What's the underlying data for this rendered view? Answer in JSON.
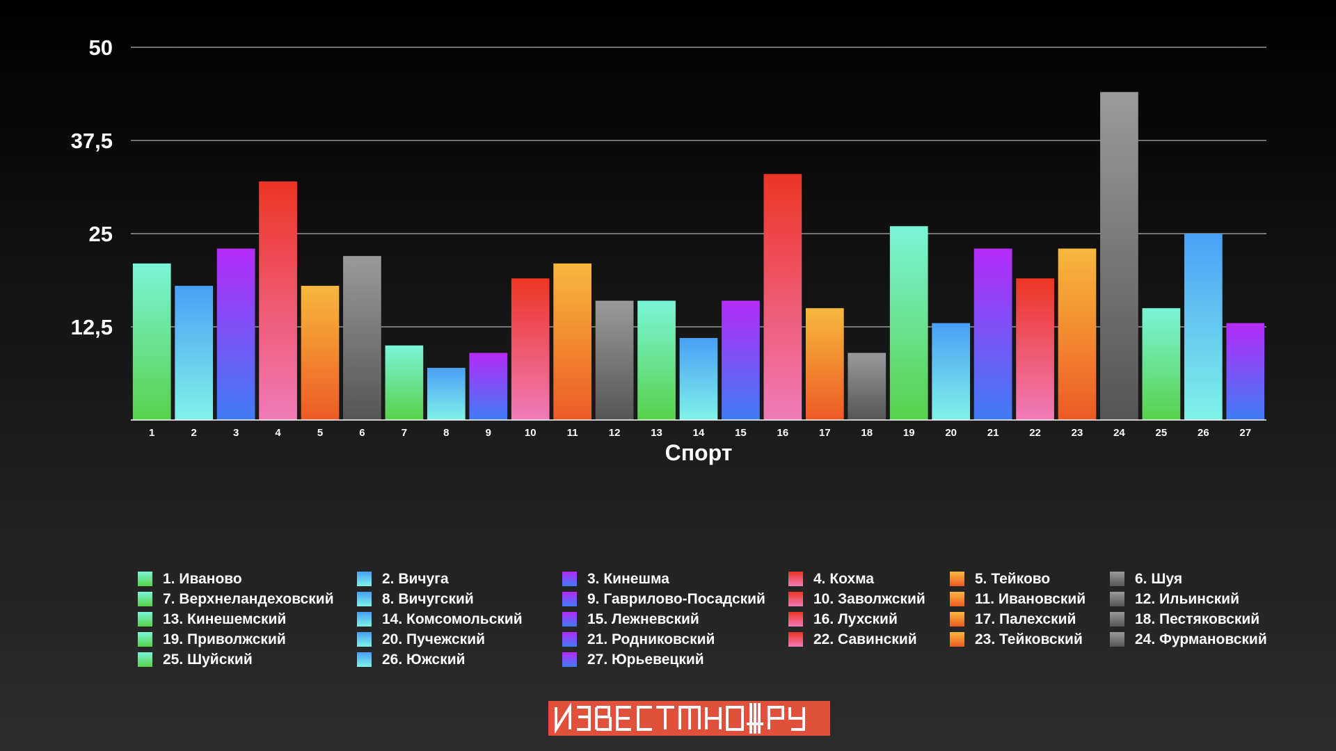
{
  "chart_data": {
    "type": "bar",
    "title": "",
    "xlabel": "Спорт",
    "ylabel": "",
    "ylim": [
      0,
      50
    ],
    "yticks": [
      "12,5",
      "25",
      "37,5",
      "50"
    ],
    "ytick_values": [
      12.5,
      25,
      37.5,
      50
    ],
    "grid": true,
    "legend_position": "bottom",
    "categories": [
      "1",
      "2",
      "3",
      "4",
      "5",
      "6",
      "7",
      "8",
      "9",
      "10",
      "11",
      "12",
      "13",
      "14",
      "15",
      "16",
      "17",
      "18",
      "19",
      "20",
      "21",
      "22",
      "23",
      "24",
      "25",
      "26",
      "27"
    ],
    "values": [
      21,
      18,
      23,
      32,
      18,
      22,
      10,
      7,
      9,
      19,
      21,
      16,
      16,
      11,
      16,
      33,
      15,
      9,
      26,
      13,
      23,
      19,
      23,
      44,
      15,
      25,
      13
    ],
    "legend": [
      "1. Иваново",
      "2. Вичуга",
      "3. Кинешма",
      "4. Кохма",
      "5. Тейково",
      "6. Шуя",
      "7. Верхнеландеховский",
      "8. Вичугский",
      "9. Гаврилово-Посадский",
      "10. Заволжский",
      "11. Ивановский",
      "12. Ильинский",
      "13. Кинешемский",
      "14. Комсомольский",
      "15. Лежневский",
      "16. Лухский",
      "17. Палехский",
      "18. Пестяковский",
      "19. Приволжский",
      "20. Пучежский",
      "21. Родниковский",
      "22. Савинский",
      "23. Тейковский",
      "24. Фурмановский",
      "25. Шуйский",
      "26. Южский",
      "27. Юрьевецкий"
    ],
    "color_groups": [
      {
        "name": "green",
        "top": "#7af5d8",
        "bottom": "#56d24a"
      },
      {
        "name": "cyan-blue",
        "top": "#4a9ff7",
        "bottom": "#7ef3e8"
      },
      {
        "name": "purple-blue",
        "top": "#b52bf7",
        "bottom": "#3f7cf7"
      },
      {
        "name": "red-pink",
        "top": "#ee3524",
        "bottom": "#f07ab8"
      },
      {
        "name": "orange",
        "top": "#f7b83c",
        "bottom": "#ee5a24"
      },
      {
        "name": "gray",
        "top": "#9a9a9a",
        "bottom": "#555555"
      }
    ],
    "bar_color_group_index": [
      0,
      1,
      2,
      3,
      4,
      5,
      0,
      1,
      2,
      3,
      4,
      5,
      0,
      1,
      2,
      3,
      4,
      5,
      0,
      1,
      2,
      3,
      4,
      5,
      0,
      1,
      2
    ]
  },
  "logo": {
    "text_left": "ИЗВЕСТНО",
    "text_right": "РУ",
    "background": "#e0503a"
  }
}
